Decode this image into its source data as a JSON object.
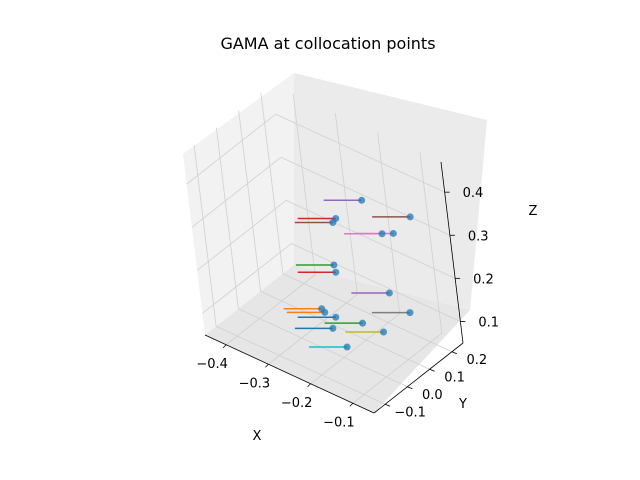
{
  "chart_data": {
    "type": "scatter",
    "title": "GAMA at collocation points",
    "xlabel": "X",
    "ylabel": "Y",
    "zlabel": "Z",
    "xlim": [
      -0.45,
      -0.05
    ],
    "ylim": [
      -0.15,
      0.25
    ],
    "zlim": [
      0.05,
      0.47
    ],
    "xticks": [
      -0.4,
      -0.3,
      -0.2,
      -0.1
    ],
    "yticks": [
      -0.1,
      0.0,
      0.1,
      0.2
    ],
    "zticks": [
      0.1,
      0.2,
      0.3,
      0.4
    ],
    "xtick_labels": [
      "−0.4",
      "−0.3",
      "−0.2",
      "−0.1"
    ],
    "ytick_labels": [
      "−0.1",
      "0.0",
      "0.1",
      "0.2"
    ],
    "ztick_labels": [
      "0.1",
      "0.2",
      "0.3",
      "0.4"
    ],
    "grid": true,
    "marker_color": "#1f77b4",
    "series_colors": [
      "#1f77b4",
      "#ff7f0e",
      "#2ca02c",
      "#d62728",
      "#9467bd",
      "#8c564b",
      "#e377c2",
      "#7f7f7f",
      "#bcbd22",
      "#17becf"
    ],
    "points": [
      {
        "x": -0.183,
        "y": -0.01,
        "z": 0.086,
        "line": "#17becf"
      },
      {
        "x": -0.219,
        "y": 0.0,
        "z": 0.109,
        "line": "#1f77b4"
      },
      {
        "x": -0.226,
        "y": 0.029,
        "z": 0.12,
        "line": "#1f77b4"
      },
      {
        "x": -0.142,
        "y": 0.08,
        "z": 0.103,
        "line": "#bcbd22"
      },
      {
        "x": -0.198,
        "y": 0.09,
        "z": 0.094,
        "line": "#2ca02c"
      },
      {
        "x": -0.265,
        "y": 0.05,
        "z": 0.105,
        "line": "#ff7f0e"
      },
      {
        "x": -0.29,
        "y": 0.08,
        "z": 0.09,
        "line": "#ff7f0e"
      },
      {
        "x": -0.142,
        "y": 0.198,
        "z": 0.1,
        "line": "#7f7f7f"
      },
      {
        "x": -0.165,
        "y": 0.161,
        "z": 0.15,
        "line": "#9467bd"
      },
      {
        "x": -0.271,
        "y": 0.125,
        "z": 0.165,
        "line": "#d62728"
      },
      {
        "x": -0.301,
        "y": 0.17,
        "z": 0.15,
        "line": "#2ca02c"
      },
      {
        "x": -0.137,
        "y": 0.161,
        "z": 0.301,
        "line": "#e377c2"
      },
      {
        "x": -0.172,
        "y": 0.172,
        "z": 0.28,
        "line": "#e377c2"
      },
      {
        "x": -0.248,
        "y": 0.1,
        "z": 0.301,
        "line": "#8c564b"
      },
      {
        "x": -0.27,
        "y": 0.15,
        "z": 0.28,
        "line": "#d62728"
      },
      {
        "x": -0.144,
        "y": 0.25,
        "z": 0.3,
        "line": "#8c564b"
      },
      {
        "x": -0.23,
        "y": 0.2,
        "z": 0.32,
        "line": "#9467bd"
      }
    ]
  }
}
